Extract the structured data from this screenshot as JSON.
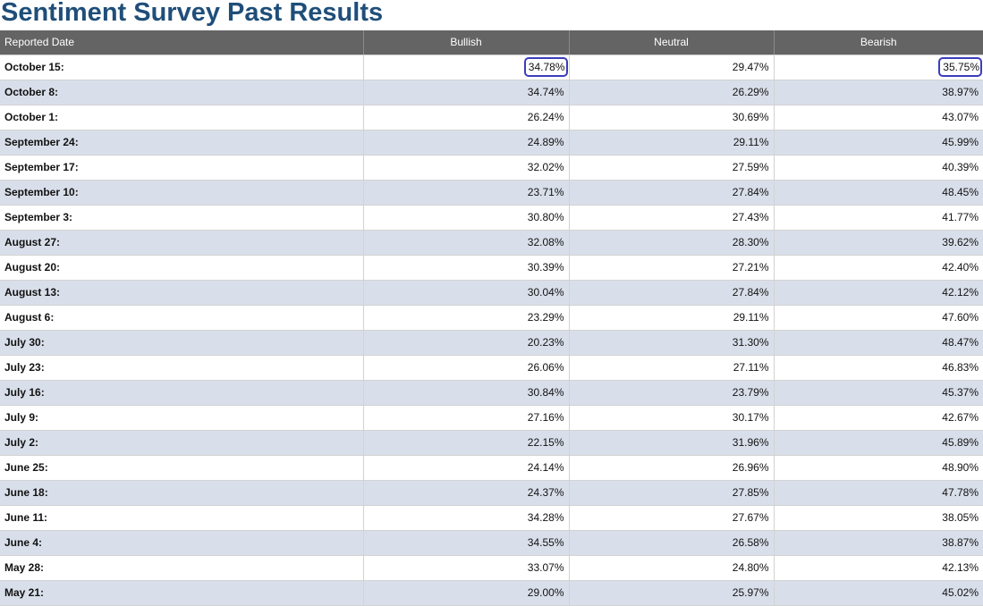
{
  "page": {
    "title": "Sentiment Survey Past Results"
  },
  "table": {
    "headers": [
      "Reported Date",
      "Bullish",
      "Neutral",
      "Bearish"
    ],
    "rows": [
      {
        "date": "October 15:",
        "bullish": "34.78%",
        "neutral": "29.47%",
        "bearish": "35.75%"
      },
      {
        "date": "October 8:",
        "bullish": "34.74%",
        "neutral": "26.29%",
        "bearish": "38.97%"
      },
      {
        "date": "October 1:",
        "bullish": "26.24%",
        "neutral": "30.69%",
        "bearish": "43.07%"
      },
      {
        "date": "September 24:",
        "bullish": "24.89%",
        "neutral": "29.11%",
        "bearish": "45.99%"
      },
      {
        "date": "September 17:",
        "bullish": "32.02%",
        "neutral": "27.59%",
        "bearish": "40.39%"
      },
      {
        "date": "September 10:",
        "bullish": "23.71%",
        "neutral": "27.84%",
        "bearish": "48.45%"
      },
      {
        "date": "September 3:",
        "bullish": "30.80%",
        "neutral": "27.43%",
        "bearish": "41.77%"
      },
      {
        "date": "August 27:",
        "bullish": "32.08%",
        "neutral": "28.30%",
        "bearish": "39.62%"
      },
      {
        "date": "August 20:",
        "bullish": "30.39%",
        "neutral": "27.21%",
        "bearish": "42.40%"
      },
      {
        "date": "August 13:",
        "bullish": "30.04%",
        "neutral": "27.84%",
        "bearish": "42.12%"
      },
      {
        "date": "August 6:",
        "bullish": "23.29%",
        "neutral": "29.11%",
        "bearish": "47.60%"
      },
      {
        "date": "July 30:",
        "bullish": "20.23%",
        "neutral": "31.30%",
        "bearish": "48.47%"
      },
      {
        "date": "July 23:",
        "bullish": "26.06%",
        "neutral": "27.11%",
        "bearish": "46.83%"
      },
      {
        "date": "July 16:",
        "bullish": "30.84%",
        "neutral": "23.79%",
        "bearish": "45.37%"
      },
      {
        "date": "July 9:",
        "bullish": "27.16%",
        "neutral": "30.17%",
        "bearish": "42.67%"
      },
      {
        "date": "July 2:",
        "bullish": "22.15%",
        "neutral": "31.96%",
        "bearish": "45.89%"
      },
      {
        "date": "June 25:",
        "bullish": "24.14%",
        "neutral": "26.96%",
        "bearish": "48.90%"
      },
      {
        "date": "June 18:",
        "bullish": "24.37%",
        "neutral": "27.85%",
        "bearish": "47.78%"
      },
      {
        "date": "June 11:",
        "bullish": "34.28%",
        "neutral": "27.67%",
        "bearish": "38.05%"
      },
      {
        "date": "June 4:",
        "bullish": "34.55%",
        "neutral": "26.58%",
        "bearish": "38.87%"
      },
      {
        "date": "May 28:",
        "bullish": "33.07%",
        "neutral": "24.80%",
        "bearish": "42.13%"
      },
      {
        "date": "May 21:",
        "bullish": "29.00%",
        "neutral": "25.97%",
        "bearish": "45.02%"
      }
    ]
  },
  "colors": {
    "title": "#1f4e79",
    "header_bg": "#646464",
    "row_alt": "#d9dfea",
    "highlight": "#3b3dbb"
  }
}
